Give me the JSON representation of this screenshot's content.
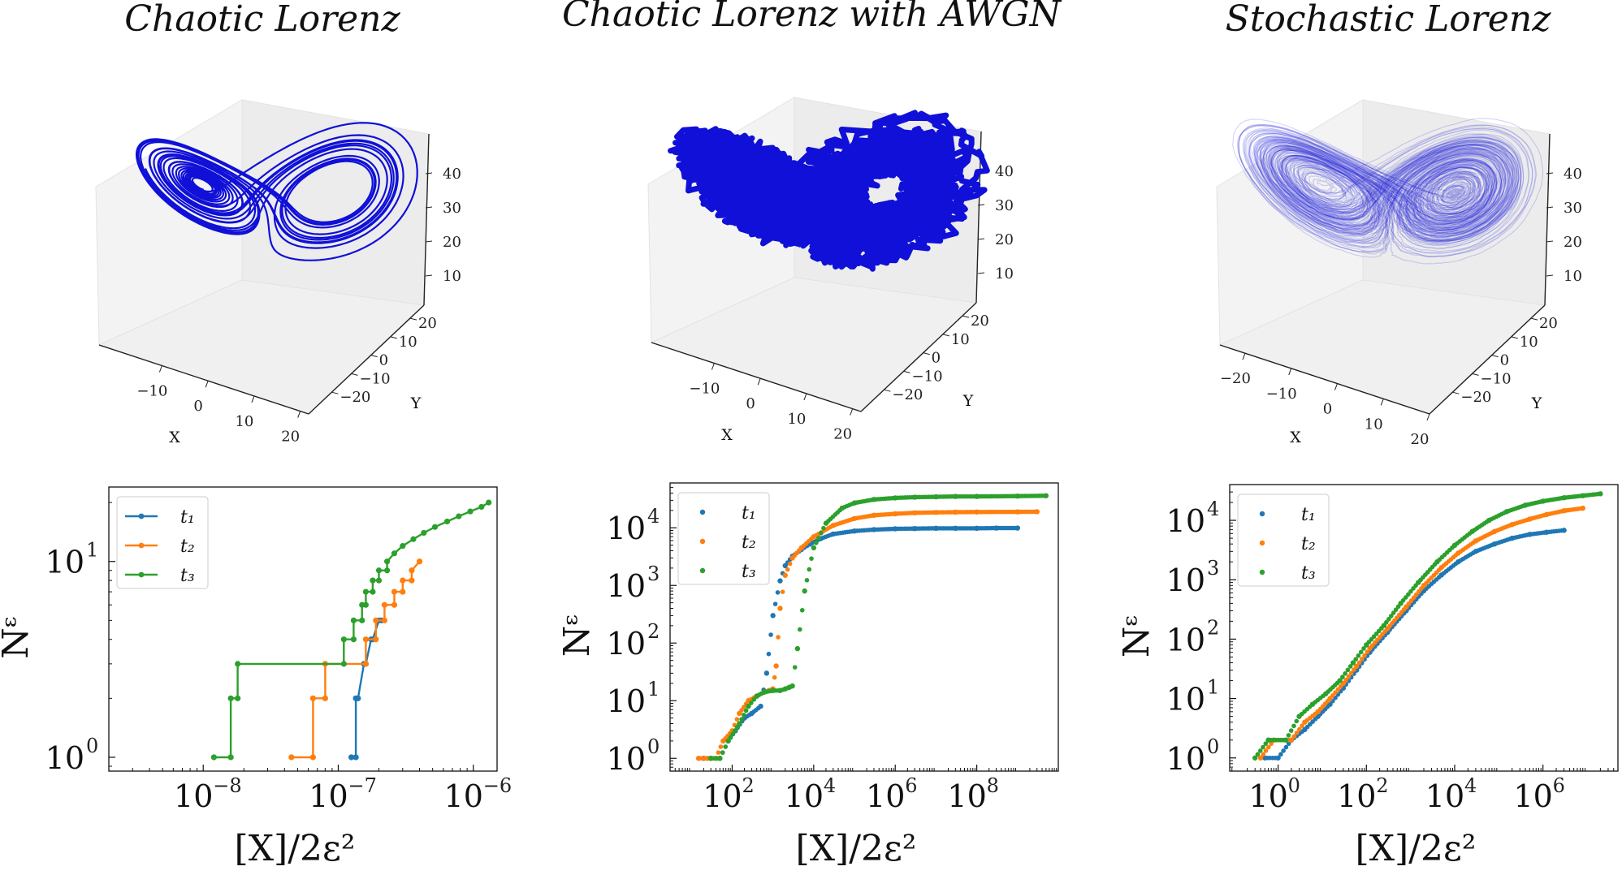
{
  "titles": [
    "Chaotic Lorenz",
    "Chaotic Lorenz with AWGN",
    "Stochastic Lorenz"
  ],
  "colors": {
    "t1": "#1f77b4",
    "t2": "#ff7f0e",
    "t3": "#2ca02c",
    "attractor": "#1010d8"
  },
  "chart_data": [
    {
      "type": "line3d",
      "title": "Chaotic Lorenz",
      "xlabel": "X",
      "ylabel": "Y",
      "zlabel": "",
      "x_ticks": [
        "−10",
        "0",
        "10",
        "20"
      ],
      "y_ticks": [
        "−20",
        "−10",
        "0",
        "10",
        "20"
      ],
      "z_ticks": [
        "10",
        "20",
        "30",
        "40"
      ],
      "style": "thin deterministic trajectory"
    },
    {
      "type": "scatter3d",
      "title": "Chaotic Lorenz with AWGN",
      "xlabel": "X",
      "ylabel": "Y",
      "zlabel": "",
      "x_ticks": [
        "−10",
        "0",
        "10",
        "20"
      ],
      "y_ticks": [
        "−20",
        "−10",
        "0",
        "10",
        "20"
      ],
      "z_ticks": [
        "10",
        "20",
        "30",
        "40"
      ],
      "style": "dense noisy trajectory"
    },
    {
      "type": "line3d",
      "title": "Stochastic Lorenz",
      "xlabel": "X",
      "ylabel": "Y",
      "zlabel": "",
      "x_ticks": [
        "−20",
        "−10",
        "0",
        "10",
        "20"
      ],
      "y_ticks": [
        "−20",
        "−10",
        "0",
        "10",
        "20"
      ],
      "z_ticks": [
        "10",
        "20",
        "30",
        "40"
      ],
      "style": "many translucent stochastic trajectories"
    },
    {
      "type": "line",
      "xscale": "log",
      "yscale": "log",
      "xlabel": "[X]/2ε²",
      "ylabel": "Nᵋ",
      "xlim": [
        2e-09,
        1.5e-06
      ],
      "ylim": [
        0.85,
        24
      ],
      "x_ticks": [
        {
          "v": 1e-08,
          "t": "10",
          "e": "−8"
        },
        {
          "v": 1e-07,
          "t": "10",
          "e": "−7"
        },
        {
          "v": 1e-06,
          "t": "10",
          "e": "−6"
        }
      ],
      "y_ticks": [
        {
          "v": 1,
          "t": "10",
          "e": "0"
        },
        {
          "v": 10,
          "t": "10",
          "e": "1"
        }
      ],
      "legend": [
        "t₁",
        "t₂",
        "t₃"
      ],
      "legend_position": "top-left",
      "series": [
        {
          "name": "t₁",
          "x": [
            1.25e-07,
            1.35e-07,
            1.35e-07,
            1.4e-07,
            1.55e-07,
            1.6e-07,
            1.75e-07,
            1.8e-07,
            2e-07,
            2.1e-07
          ],
          "y": [
            1,
            1,
            2,
            2,
            3,
            3,
            4,
            4,
            5,
            5
          ]
        },
        {
          "name": "t₂",
          "x": [
            4.5e-08,
            6.5e-08,
            6.5e-08,
            8e-08,
            8e-08,
            1.6e-07,
            1.6e-07,
            1.9e-07,
            1.9e-07,
            2.2e-07,
            2.2e-07,
            2.6e-07,
            2.6e-07,
            3e-07,
            3e-07,
            3.5e-07,
            3.5e-07,
            4e-07
          ],
          "y": [
            1,
            1,
            2,
            2,
            3,
            3,
            4,
            4,
            5,
            5,
            6,
            6,
            7,
            7,
            8,
            8,
            9,
            10
          ]
        },
        {
          "name": "t₃",
          "x": [
            1.2e-08,
            1.6e-08,
            1.6e-08,
            1.8e-08,
            1.8e-08,
            1.1e-07,
            1.1e-07,
            1.3e-07,
            1.3e-07,
            1.5e-07,
            1.5e-07,
            1.6e-07,
            1.6e-07,
            1.8e-07,
            1.8e-07,
            2e-07,
            2e-07,
            2.3e-07,
            2.3e-07,
            2.6e-07,
            3e-07,
            3.6e-07,
            4.3e-07,
            5.2e-07,
            6.4e-07,
            7.8e-07,
            9.5e-07,
            1.15e-06,
            1.3e-06
          ],
          "y": [
            1,
            1,
            2,
            2,
            3,
            3,
            4,
            4,
            5,
            5,
            6,
            6,
            7,
            7,
            8,
            8,
            9,
            9,
            10,
            11,
            12,
            13,
            14,
            15,
            16,
            17,
            18,
            19,
            20
          ]
        }
      ]
    },
    {
      "type": "scatter",
      "xscale": "log",
      "yscale": "log",
      "xlabel": "[X]/2ε²",
      "ylabel": "Nᵋ",
      "xlim": [
        3,
        10000000000.0
      ],
      "ylim": [
        0.6,
        60000
      ],
      "x_ticks": [
        {
          "v": 100,
          "t": "10",
          "e": "2"
        },
        {
          "v": 10000,
          "t": "10",
          "e": "4"
        },
        {
          "v": 1000000,
          "t": "10",
          "e": "6"
        },
        {
          "v": 100000000,
          "t": "10",
          "e": "8"
        }
      ],
      "y_ticks": [
        {
          "v": 1,
          "t": "10",
          "e": "0"
        },
        {
          "v": 10,
          "t": "10",
          "e": "1"
        },
        {
          "v": 100,
          "t": "10",
          "e": "2"
        },
        {
          "v": 1000,
          "t": "10",
          "e": "3"
        },
        {
          "v": 10000,
          "t": "10",
          "e": "4"
        }
      ],
      "legend": [
        "t₁",
        "t₂",
        "t₃"
      ],
      "legend_position": "top-left",
      "series": [
        {
          "name": "t₁",
          "x": [
            20,
            30,
            50,
            80,
            120,
            200,
            300,
            500,
            700,
            1000,
            1500,
            2000,
            3000,
            5000,
            8000,
            15000,
            30000,
            100000,
            300000,
            1000000,
            3000000,
            10000000,
            30000000,
            100000000,
            300000000,
            1000000000
          ],
          "y": [
            1,
            1,
            1,
            2,
            3,
            5,
            6,
            8,
            30,
            300,
            1200,
            2200,
            3200,
            4200,
            5200,
            6500,
            7800,
            8800,
            9300,
            9600,
            9700,
            9800,
            9800,
            9800,
            9900,
            9900
          ]
        },
        {
          "name": "t₂",
          "x": [
            15,
            25,
            40,
            60,
            100,
            150,
            250,
            400,
            600,
            800,
            1000,
            1200,
            1500,
            2000,
            3000,
            5000,
            10000,
            30000,
            100000,
            300000,
            1000000,
            3000000,
            10000000,
            30000000,
            100000000,
            1000000000,
            3000000000
          ],
          "y": [
            1,
            1,
            1,
            2,
            3,
            6,
            10,
            12,
            14,
            15,
            16,
            40,
            400,
            1500,
            3000,
            4500,
            7000,
            11000,
            14500,
            16500,
            17500,
            18200,
            18500,
            18700,
            18800,
            18900,
            19000
          ]
        },
        {
          "name": "t₃",
          "x": [
            30,
            50,
            80,
            150,
            250,
            400,
            600,
            1000,
            1500,
            2000,
            2500,
            3000,
            4000,
            6000,
            10000,
            20000,
            50000,
            100000,
            300000,
            1000000,
            3000000,
            10000000,
            30000000,
            100000000,
            1000000000,
            5000000000
          ],
          "y": [
            1,
            1,
            2,
            4,
            8,
            12,
            14,
            15,
            15,
            16,
            17,
            18,
            80,
            800,
            4500,
            12000,
            22000,
            27000,
            31000,
            33000,
            34000,
            34500,
            35000,
            35000,
            35500,
            36000
          ]
        }
      ]
    },
    {
      "type": "scatter",
      "xscale": "log",
      "yscale": "log",
      "xlabel": "[X]/2ε²",
      "ylabel": "Nᵋ",
      "xlim": [
        0.08,
        50000000.0
      ],
      "ylim": [
        0.6,
        40000
      ],
      "x_ticks": [
        {
          "v": 1,
          "t": "10",
          "e": "0"
        },
        {
          "v": 100,
          "t": "10",
          "e": "2"
        },
        {
          "v": 10000,
          "t": "10",
          "e": "4"
        },
        {
          "v": 1000000,
          "t": "10",
          "e": "6"
        }
      ],
      "y_ticks": [
        {
          "v": 1,
          "t": "10",
          "e": "0"
        },
        {
          "v": 10,
          "t": "10",
          "e": "1"
        },
        {
          "v": 100,
          "t": "10",
          "e": "2"
        },
        {
          "v": 1000,
          "t": "10",
          "e": "3"
        },
        {
          "v": 10000,
          "t": "10",
          "e": "4"
        }
      ],
      "legend": [
        "t₁",
        "t₂",
        "t₃"
      ],
      "legend_position": "top-left",
      "series": [
        {
          "name": "t₁",
          "x": [
            0.5,
            1,
            2,
            4,
            8,
            15,
            30,
            60,
            120,
            300,
            800,
            2000,
            5000,
            12000,
            30000,
            80000,
            200000,
            500000,
            1200000,
            3000000
          ],
          "y": [
            1,
            1,
            2,
            3,
            5,
            8,
            15,
            30,
            60,
            130,
            300,
            650,
            1200,
            2000,
            3000,
            4000,
            5000,
            5800,
            6300,
            6800
          ]
        },
        {
          "name": "t₂",
          "x": [
            0.4,
            0.8,
            2,
            4,
            8,
            15,
            30,
            60,
            120,
            300,
            800,
            2000,
            5000,
            12000,
            30000,
            80000,
            200000,
            500000,
            1200000,
            3000000,
            8000000
          ],
          "y": [
            1,
            2,
            2,
            4,
            6,
            10,
            18,
            35,
            70,
            150,
            350,
            800,
            1600,
            2800,
            4500,
            6500,
            8500,
            10500,
            12500,
            14500,
            16000
          ]
        },
        {
          "name": "t₃",
          "x": [
            0.3,
            0.6,
            1.5,
            3,
            6,
            12,
            25,
            50,
            100,
            250,
            600,
            1500,
            4000,
            10000,
            25000,
            60000,
            150000,
            400000,
            1000000,
            3000000,
            8000000,
            20000000
          ],
          "y": [
            1,
            2,
            2,
            5,
            8,
            12,
            20,
            40,
            80,
            170,
            400,
            900,
            2000,
            3800,
            6500,
            10000,
            14000,
            18000,
            21000,
            24000,
            26000,
            28000
          ]
        }
      ]
    }
  ]
}
